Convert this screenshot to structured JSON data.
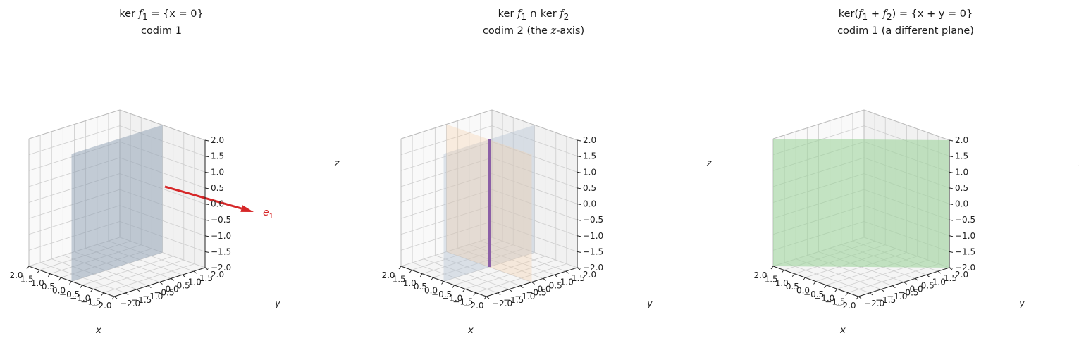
{
  "chart_data": [
    {
      "type": "3d-surface",
      "title_line1": {
        "pre": "ker ",
        "var": "f",
        "sub": "1",
        "post": " = {x = 0}"
      },
      "title_line2": "codim 1",
      "xlabel": "x",
      "ylabel": "y",
      "zlabel": "z",
      "xlim": [
        -2,
        2
      ],
      "ylim": [
        -2,
        2
      ],
      "zlim": [
        -2,
        2
      ],
      "ticks": [
        "-2.0",
        "-1.5",
        "-1.0",
        "-0.5",
        "0.0",
        "0.5",
        "1.0",
        "1.5",
        "2.0"
      ],
      "grid": true,
      "planes": [
        {
          "equation": "x = 0",
          "color": "#8c9db2"
        }
      ],
      "vectors": [
        {
          "from": [
            -2,
            0,
            0
          ],
          "to": [
            2,
            0,
            0
          ],
          "label": "e",
          "label_sub": "1",
          "color": "#d62728"
        }
      ]
    },
    {
      "type": "3d-surface",
      "title_line1": {
        "pre": "ker ",
        "var": "f",
        "sub": "1",
        "post": " ∩ ker ",
        "var2": "f",
        "sub2": "2"
      },
      "title_line2": {
        "pre": "codim 2 (the ",
        "var": "z",
        "post": "-axis)"
      },
      "xlabel": "x",
      "ylabel": "y",
      "zlabel": "z",
      "xlim": [
        -2,
        2
      ],
      "ylim": [
        -2,
        2
      ],
      "zlim": [
        -2,
        2
      ],
      "ticks": [
        "-2.0",
        "-1.5",
        "-1.0",
        "-0.5",
        "0.0",
        "0.5",
        "1.0",
        "1.5",
        "2.0"
      ],
      "grid": true,
      "planes": [
        {
          "equation": "x = 0",
          "color": "#b9c6d4"
        },
        {
          "equation": "y = 0",
          "color": "#f5cda5"
        }
      ],
      "lines": [
        {
          "from": [
            0,
            0,
            -2
          ],
          "to": [
            0,
            0,
            2
          ],
          "color": "#8b5fa6"
        }
      ]
    },
    {
      "type": "3d-surface",
      "title_line1": {
        "pre": "ker(",
        "var": "f",
        "sub": "1",
        "post": " + ",
        "var2": "f",
        "sub2": "2",
        "post2": ") = {x + y = 0}"
      },
      "title_line2": "codim 1 (a different plane)",
      "xlabel": "x",
      "ylabel": "y",
      "zlabel": "z",
      "xlim": [
        -2,
        2
      ],
      "ylim": [
        -2,
        2
      ],
      "zlim": [
        -2,
        2
      ],
      "ticks": [
        "-2.0",
        "-1.5",
        "-1.0",
        "-0.5",
        "0.0",
        "0.5",
        "1.0",
        "1.5",
        "2.0"
      ],
      "grid": true,
      "planes": [
        {
          "equation": "x + y = 0",
          "color": "#9fd39c"
        }
      ]
    }
  ]
}
